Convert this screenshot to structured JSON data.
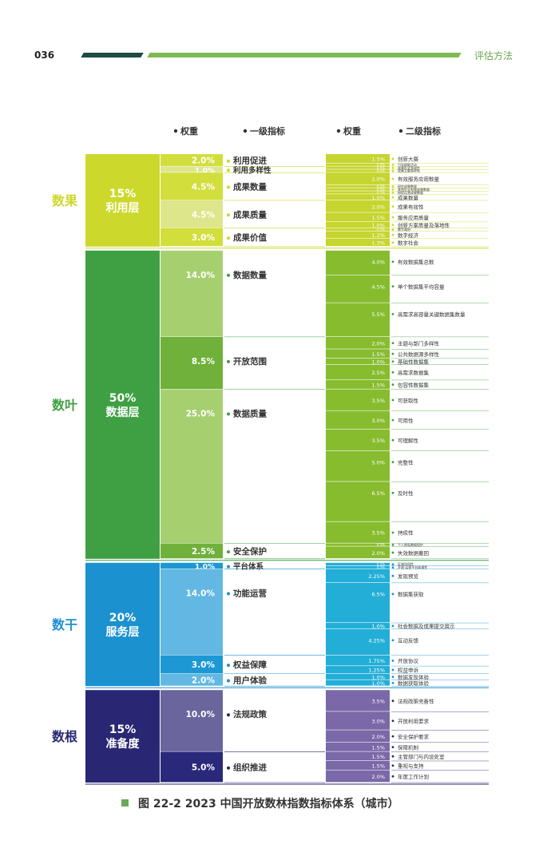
{
  "page": {
    "number": "036",
    "section": "评估方法",
    "caption": "图 22-2 2023 中国开放数林指数指标体系（城市）"
  },
  "chart_data": {
    "type": "table",
    "headers": {
      "weight1": "权重",
      "level1": "一级指标",
      "weight2": "权重",
      "level2": "二级指标"
    },
    "groups": [
      {
        "category": "数果",
        "pct": "15%",
        "layer": "利用层",
        "color": "#ccd92c",
        "level1": [
          {
            "weight": "2.0%",
            "name": "利用促进",
            "level2": [
              {
                "weight": "1.5%",
                "name": "创新大赛"
              },
              {
                "weight": "0.5%",
                "name": "引导赋能活动"
              }
            ]
          },
          {
            "weight": "1.0%",
            "name": "利用多样性",
            "level2": [
              {
                "weight": "0.5%",
                "name": "成果形式多样性"
              },
              {
                "weight": "0.5%",
                "name": "成果主题多样性"
              }
            ]
          },
          {
            "weight": "4.5%",
            "name": "成果数量",
            "level2": [
              {
                "weight": "2.0%",
                "name": "有效服务应用数量"
              },
              {
                "weight": "0.5%",
                "name": "研究成果数量"
              },
              {
                "weight": "0.5%",
                "name": "其他形式有效成果数量"
              },
              {
                "weight": "0.5%",
                "name": "授权运营成果数量"
              },
              {
                "weight": "1.0%",
                "name": "成果数量"
              }
            ]
          },
          {
            "weight": "4.5%",
            "name": "成果质量",
            "level2": [
              {
                "weight": "2.0%",
                "name": "成果有效性"
              },
              {
                "weight": "1.5%",
                "name": "服务应用质量"
              },
              {
                "weight": "1.0%",
                "name": "创新方案质量及落地性"
              }
            ]
          },
          {
            "weight": "3.0%",
            "name": "成果价值",
            "level2": [
              {
                "weight": "0.5%",
                "name": "数字政府"
              },
              {
                "weight": "1.2%",
                "name": "数字经济"
              },
              {
                "weight": "1.3%",
                "name": "数字社会"
              }
            ]
          }
        ]
      },
      {
        "category": "数叶",
        "pct": "50%",
        "layer": "数据层",
        "color": "#3fa043",
        "level1": [
          {
            "weight": "14.0%",
            "name": "数据数量",
            "level2": [
              {
                "weight": "4.0%",
                "name": "有效数据集总数"
              },
              {
                "weight": "4.5%",
                "name": "单个数据集平均容量"
              },
              {
                "weight": "5.5%",
                "name": "高需求高容量关键数据集数量"
              }
            ]
          },
          {
            "weight": "8.5%",
            "name": "开放范围",
            "level2": [
              {
                "weight": "2.0%",
                "name": "主题与部门多样性"
              },
              {
                "weight": "1.5%",
                "name": "公共数据源多样性"
              },
              {
                "weight": "1.0%",
                "name": "基础性数据集"
              },
              {
                "weight": "2.5%",
                "name": "高需求数据集"
              },
              {
                "weight": "1.5%",
                "name": "包容性数据集"
              }
            ]
          },
          {
            "weight": "25.0%",
            "name": "数据质量",
            "level2": [
              {
                "weight": "3.5%",
                "name": "可获取性"
              },
              {
                "weight": "3.0%",
                "name": "可用性"
              },
              {
                "weight": "3.5%",
                "name": "可理解性"
              },
              {
                "weight": "5.0%",
                "name": "完整性"
              },
              {
                "weight": "6.5%",
                "name": "及时性"
              },
              {
                "weight": "3.5%",
                "name": "持续性"
              }
            ]
          },
          {
            "weight": "2.5%",
            "name": "安全保护",
            "level2": [
              {
                "weight": "0.5%",
                "name": "个人隐私数据保护"
              },
              {
                "weight": "2.0%",
                "name": "失效数据撤回"
              }
            ]
          }
        ]
      },
      {
        "category": "数干",
        "pct": "20%",
        "layer": "服务层",
        "color": "#1b91cf",
        "level1": [
          {
            "weight": "1.0%",
            "name": "平台体系",
            "level2": [
              {
                "weight": "0.5%",
                "name": "区域协同性"
              },
              {
                "weight": "0.5%",
                "name": "开放·运营平台联通性"
              }
            ]
          },
          {
            "weight": "14.0%",
            "name": "功能运营",
            "level2": [
              {
                "weight": "2.25%",
                "name": "发现预览"
              },
              {
                "weight": "6.5%",
                "name": "数据集获取"
              },
              {
                "weight": "1.0%",
                "name": "社会数据及成果提交展示"
              },
              {
                "weight": "4.25%",
                "name": "互动反馈"
              }
            ]
          },
          {
            "weight": "3.0%",
            "name": "权益保障",
            "level2": [
              {
                "weight": "1.75%",
                "name": "开放协议"
              },
              {
                "weight": "1.25%",
                "name": "权益申诉"
              }
            ]
          },
          {
            "weight": "2.0%",
            "name": "用户体验",
            "level2": [
              {
                "weight": "1.0%",
                "name": "数据发现体验"
              },
              {
                "weight": "1.0%",
                "name": "数据获取体验"
              }
            ]
          }
        ]
      },
      {
        "category": "数根",
        "pct": "15%",
        "layer": "准备度",
        "color": "#292773",
        "level1": [
          {
            "weight": "10.0%",
            "name": "法规政策",
            "level2": [
              {
                "weight": "3.5%",
                "name": "法规政策完备性"
              },
              {
                "weight": "3.0%",
                "name": "开放利用要求"
              },
              {
                "weight": "2.0%",
                "name": "安全保护要求"
              },
              {
                "weight": "1.5%",
                "name": "保障机制"
              }
            ]
          },
          {
            "weight": "5.0%",
            "name": "组织推进",
            "level2": [
              {
                "weight": "1.5%",
                "name": "主管部门与内设处室"
              },
              {
                "weight": "1.5%",
                "name": "重视与支持"
              },
              {
                "weight": "2.0%",
                "name": "年度工作计划"
              }
            ]
          }
        ]
      }
    ]
  }
}
